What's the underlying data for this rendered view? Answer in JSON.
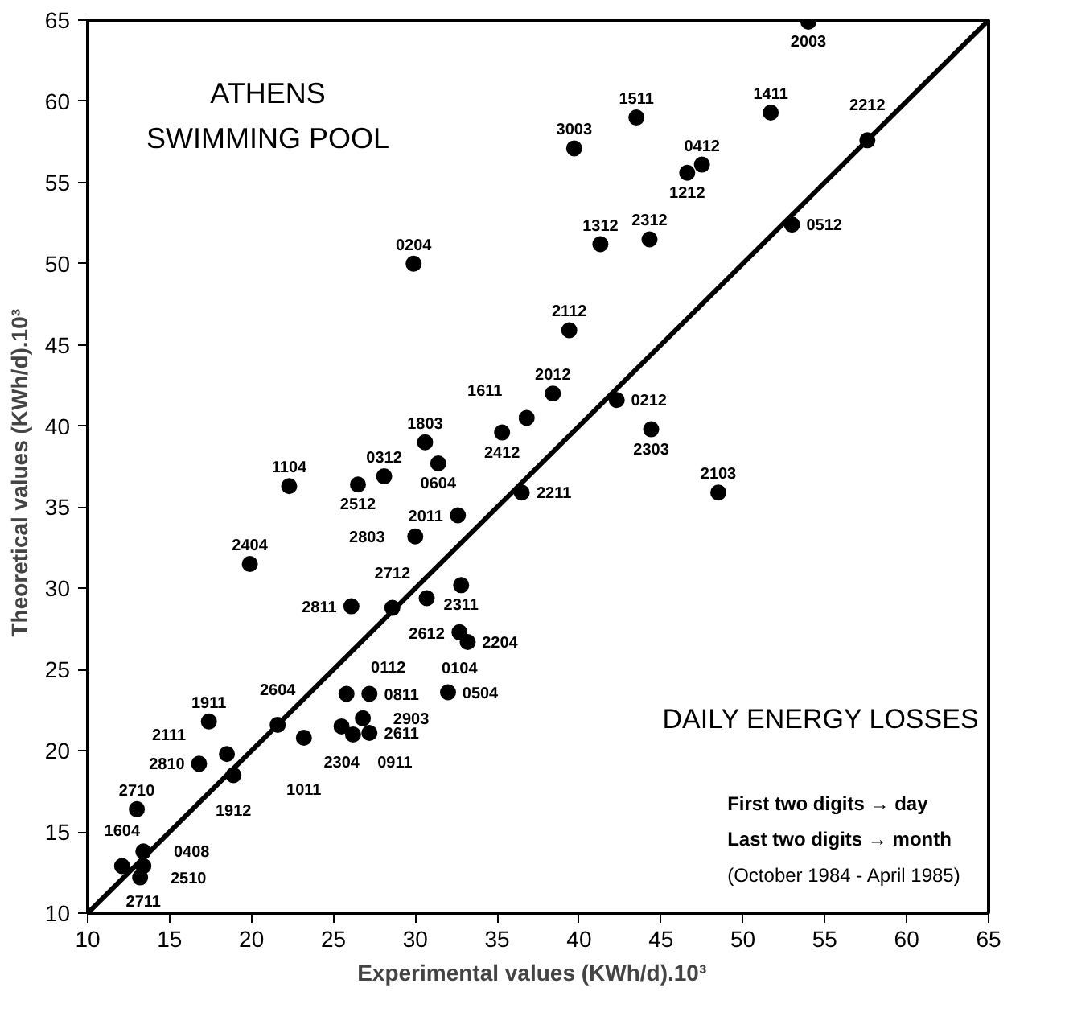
{
  "chart_data": {
    "type": "scatter",
    "title": "ATHENS\nSWIMMING POOL",
    "subtitle": "DAILY ENERGY LOSSES",
    "xlabel": "Experimental values   (KWh/d).10³",
    "ylabel": "Theoretical values   (KWh/d).10³",
    "xlim": [
      10,
      65
    ],
    "ylim": [
      10,
      65
    ],
    "xticks": [
      10,
      15,
      20,
      25,
      30,
      35,
      40,
      45,
      50,
      55,
      60,
      65
    ],
    "yticks": [
      10,
      15,
      20,
      25,
      30,
      35,
      40,
      45,
      50,
      55,
      60,
      65
    ],
    "grid": false,
    "marker": "circle",
    "series": [
      {
        "color": "#000000",
        "x": [
          22.3,
          28.1,
          31.4,
          26.5,
          32.6,
          30.0,
          19.9,
          32.8,
          28.6,
          26.1,
          30.7,
          32.7,
          33.2,
          25.8,
          27.2,
          32.0,
          25.5,
          26.8,
          26.2,
          27.2,
          23.2,
          21.6,
          17.4,
          18.5,
          18.9,
          16.8,
          13.0,
          13.4,
          12.1,
          13.4,
          13.2,
          29.9,
          30.6,
          54.0,
          43.5,
          51.7,
          39.7,
          47.5,
          46.6,
          57.6,
          41.3,
          44.3,
          53.0,
          39.4,
          38.4,
          42.3,
          36.8,
          35.3,
          44.4,
          36.5,
          48.5
        ],
        "values": [
          36.3,
          36.9,
          37.7,
          36.4,
          34.5,
          33.2,
          31.5,
          30.2,
          28.8,
          28.9,
          29.4,
          27.3,
          26.7,
          23.5,
          23.5,
          23.6,
          21.5,
          22.0,
          21.0,
          21.1,
          20.8,
          21.6,
          21.8,
          19.8,
          18.5,
          19.2,
          16.4,
          13.8,
          12.9,
          12.9,
          12.2,
          50.0,
          39.0,
          64.9,
          59.0,
          59.3,
          57.1,
          56.1,
          55.6,
          57.6,
          51.2,
          51.5,
          52.4,
          45.9,
          42.0,
          41.6,
          40.5,
          39.6,
          39.8,
          35.9,
          35.9
        ]
      },
      {
        "type": "line",
        "color": "#000000",
        "x": [
          10,
          65
        ],
        "values": [
          10,
          65
        ],
        "marker": "none"
      }
    ],
    "annotations": [
      {
        "text": "1104",
        "x": 22.3,
        "y": 36.3
      },
      {
        "text": "0312",
        "x": 28.1,
        "y": 36.9
      },
      {
        "text": "0604",
        "x": 31.4,
        "y": 37.7
      },
      {
        "text": "2512",
        "x": 26.5,
        "y": 36.4
      },
      {
        "text": "2011",
        "x": 32.6,
        "y": 34.5
      },
      {
        "text": "2803",
        "x": 30.0,
        "y": 33.2
      },
      {
        "text": "2404",
        "x": 19.9,
        "y": 31.5
      },
      {
        "text": "2311",
        "x": 32.8,
        "y": 30.2
      },
      {
        "text": "2712",
        "x": 28.6,
        "y": 28.8
      },
      {
        "text": "2811",
        "x": 26.1,
        "y": 28.9
      },
      {
        "text": "2612",
        "x": 30.7,
        "y": 29.4
      },
      {
        "text": "0104",
        "x": 32.7,
        "y": 27.3
      },
      {
        "text": "2204",
        "x": 33.2,
        "y": 26.7
      },
      {
        "text": "0112",
        "x": 25.8,
        "y": 23.5
      },
      {
        "text": "0811",
        "x": 27.2,
        "y": 23.5
      },
      {
        "text": "0504",
        "x": 32.0,
        "y": 23.6
      },
      {
        "text": "2304",
        "x": 25.5,
        "y": 21.5
      },
      {
        "text": "2903",
        "x": 26.8,
        "y": 22.0
      },
      {
        "text": "0911",
        "x": 26.2,
        "y": 21.0
      },
      {
        "text": "2611",
        "x": 27.2,
        "y": 21.1
      },
      {
        "text": "1011",
        "x": 23.2,
        "y": 20.8
      },
      {
        "text": "2604",
        "x": 21.6,
        "y": 21.6
      },
      {
        "text": "1911",
        "x": 17.4,
        "y": 21.8
      },
      {
        "text": "2111",
        "x": 18.5,
        "y": 19.8
      },
      {
        "text": "1912",
        "x": 18.9,
        "y": 18.5
      },
      {
        "text": "2810",
        "x": 16.8,
        "y": 19.2
      },
      {
        "text": "2710",
        "x": 13.0,
        "y": 16.4
      },
      {
        "text": "0408",
        "x": 13.4,
        "y": 13.8
      },
      {
        "text": "1604",
        "x": 12.1,
        "y": 12.9
      },
      {
        "text": "2711",
        "x": 13.4,
        "y": 12.9
      },
      {
        "text": "2510",
        "x": 13.2,
        "y": 12.2
      },
      {
        "text": "0204",
        "x": 29.9,
        "y": 50.0
      },
      {
        "text": "1803",
        "x": 30.6,
        "y": 39.0
      },
      {
        "text": "2003",
        "x": 54.0,
        "y": 64.9
      },
      {
        "text": "1511",
        "x": 43.5,
        "y": 59.0
      },
      {
        "text": "1411",
        "x": 51.7,
        "y": 59.3
      },
      {
        "text": "3003",
        "x": 39.7,
        "y": 57.1
      },
      {
        "text": "0412",
        "x": 47.5,
        "y": 56.1
      },
      {
        "text": "1212",
        "x": 46.6,
        "y": 55.6
      },
      {
        "text": "2212",
        "x": 57.6,
        "y": 57.6
      },
      {
        "text": "1312",
        "x": 41.3,
        "y": 51.2
      },
      {
        "text": "2312",
        "x": 44.3,
        "y": 51.5
      },
      {
        "text": "0512",
        "x": 53.0,
        "y": 52.4
      },
      {
        "text": "2112",
        "x": 39.4,
        "y": 45.9
      },
      {
        "text": "2012",
        "x": 38.4,
        "y": 42.0
      },
      {
        "text": "0212",
        "x": 42.3,
        "y": 41.6
      },
      {
        "text": "1611",
        "x": 36.8,
        "y": 40.5
      },
      {
        "text": "2412",
        "x": 35.3,
        "y": 39.6
      },
      {
        "text": "2303",
        "x": 44.4,
        "y": 39.8
      },
      {
        "text": "2211",
        "x": 36.5,
        "y": 35.9
      },
      {
        "text": "2103",
        "x": 48.5,
        "y": 35.9
      },
      "First two digits → day",
      "Last two digits → month",
      "(October 1984 - April 1985)"
    ]
  }
}
